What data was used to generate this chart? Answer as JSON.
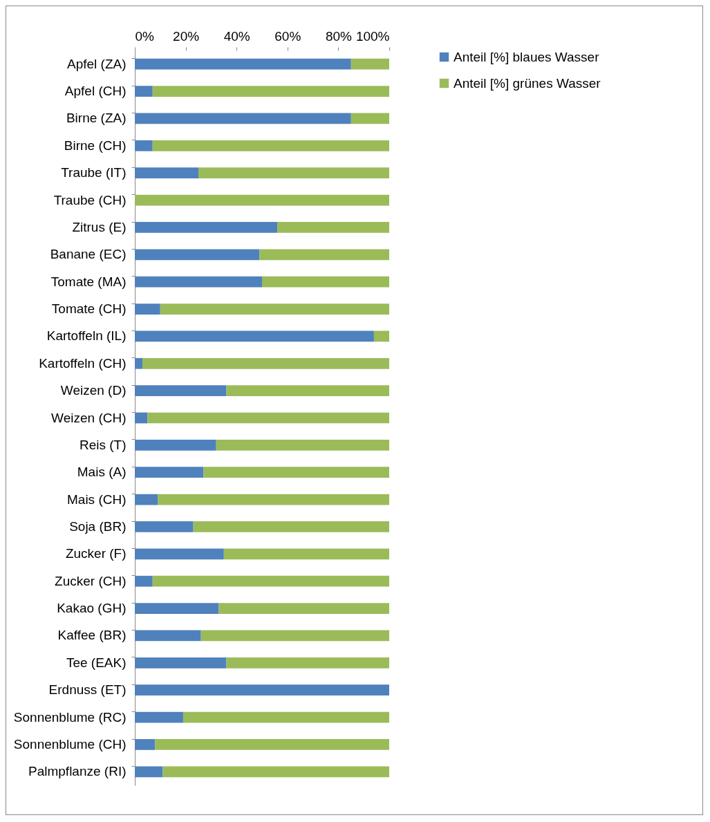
{
  "chart_data": {
    "type": "bar",
    "orientation": "horizontal",
    "stacked": true,
    "categories": [
      "Apfel (ZA)",
      "Apfel (CH)",
      "Birne (ZA)",
      "Birne (CH)",
      "Traube (IT)",
      "Traube (CH)",
      "Zitrus (E)",
      "Banane (EC)",
      "Tomate (MA)",
      "Tomate (CH)",
      "Kartoffeln (IL)",
      "Kartoffeln (CH)",
      "Weizen (D)",
      "Weizen (CH)",
      "Reis (T)",
      "Mais (A)",
      "Mais (CH)",
      "Soja (BR)",
      "Zucker (F)",
      "Zucker (CH)",
      "Kakao (GH)",
      "Kaffee (BR)",
      "Tee (EAK)",
      "Erdnuss (ET)",
      "Sonnenblume (RC)",
      "Sonnenblume (CH)",
      "Palmpflanze (RI)"
    ],
    "series": [
      {
        "name": "Anteil [%] blaues Wasser",
        "color": "#4f81bd",
        "values": [
          85,
          7,
          85,
          7,
          25,
          0,
          56,
          49,
          50,
          10,
          94,
          3,
          36,
          5,
          32,
          27,
          9,
          23,
          35,
          7,
          33,
          26,
          36,
          100,
          19,
          8,
          11
        ]
      },
      {
        "name": "Anteil [%] grünes Wasser",
        "color": "#9bbb59",
        "values": [
          15,
          93,
          15,
          93,
          75,
          100,
          44,
          51,
          50,
          90,
          6,
          97,
          64,
          95,
          68,
          73,
          91,
          77,
          65,
          93,
          67,
          74,
          64,
          0,
          81,
          92,
          89
        ]
      }
    ],
    "xlim": [
      0,
      100
    ],
    "xticks": [
      {
        "value": 0,
        "label": "0%"
      },
      {
        "value": 20,
        "label": "20%"
      },
      {
        "value": 40,
        "label": "40%"
      },
      {
        "value": 60,
        "label": "60%"
      },
      {
        "value": 80,
        "label": "80%"
      },
      {
        "value": 100,
        "label": "100%"
      }
    ],
    "grid": false,
    "legend": "right"
  }
}
